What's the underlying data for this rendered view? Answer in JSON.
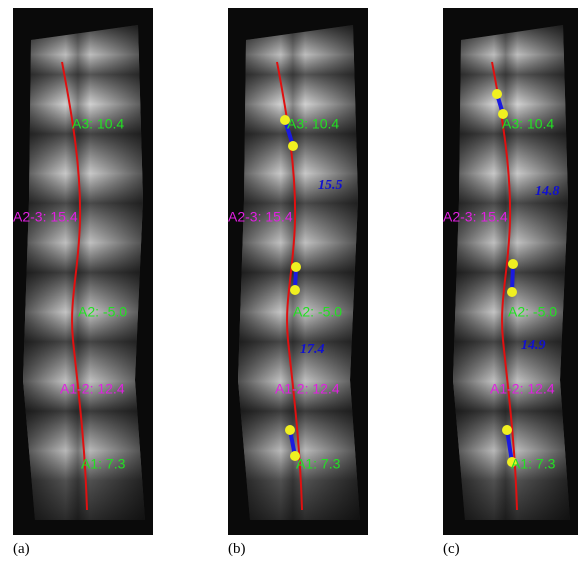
{
  "panels": [
    {
      "caption": "(a)",
      "labels": [
        "A3: 10.4",
        "A2-3: 15.4",
        "A2: -5.0",
        "A1-2: 12.4",
        "A1: 7.3"
      ],
      "measurements": []
    },
    {
      "caption": "(b)",
      "labels": [
        "A3: 10.4",
        "A2-3: 15.4",
        "A2: -5.0",
        "A1-2: 12.4",
        "A1: 7.3"
      ],
      "measurements": [
        "15.5",
        "17.4"
      ]
    },
    {
      "caption": "(c)",
      "labels": [
        "A3: 10.4",
        "A2-3: 15.4",
        "A2: -5.0",
        "A1-2: 12.4",
        "A1: 7.3"
      ],
      "measurements": [
        "14.8",
        "14.9"
      ]
    }
  ]
}
